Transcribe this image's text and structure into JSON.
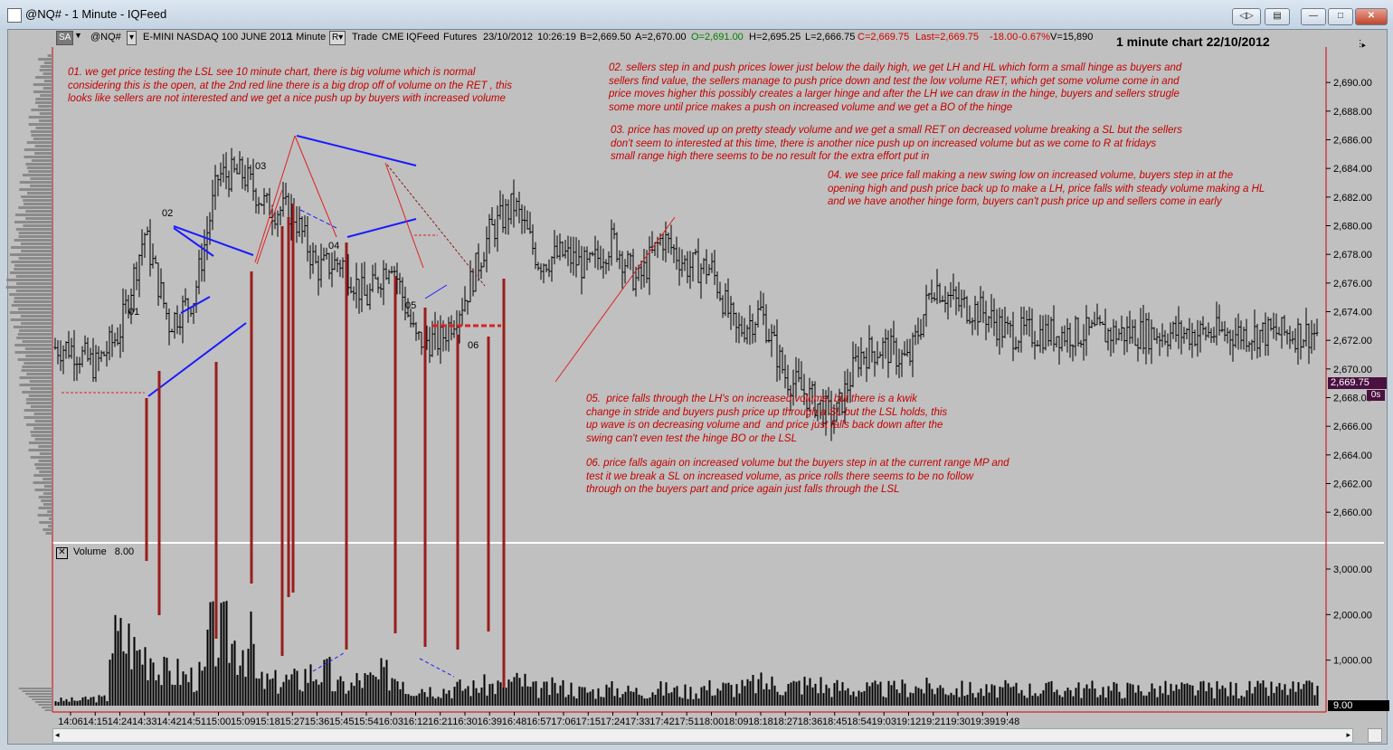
{
  "window": {
    "title": "@NQ# - 1 Minute - IQFeed"
  },
  "toolbar": {
    "mode": "SA",
    "symbol": "@NQ#",
    "contract": "E-MINI NASDAQ 100 JUNE 2012",
    "interval": "1 Minute",
    "r_label": "R",
    "trade": "Trade",
    "exchange": "CME",
    "feed": "IQFeed",
    "type": "Futures",
    "date": "23/10/2012",
    "time": "10:26:19",
    "bid": "B=2,669.50",
    "ask": "A=2,670.00",
    "open": "O=2,691.00",
    "high": "H=2,695.25",
    "low": "L=2,666.75",
    "close": "C=2,669.75",
    "last": "Last=2,669.75",
    "change": "-18.00",
    "change_pct": "-0.67%",
    "volume": "V=15,890"
  },
  "chart_title": "1 minute chart 22/10/2012",
  "notes": {
    "n01": "01. we get price testing the LSL see 10 minute chart, there is big volume which is normal\nconsidering this is the open, at the 2nd red line there is a big drop off of volume on the RET , this\nlooks like sellers are not interested and we get a nice push up by buyers with increased volume",
    "n02": "02. sellers step in and push prices lower just below the daily high, we get LH and HL which form a small hinge as buyers and\nsellers find value, the sellers manage to push price down and test the low volume RET, which get some volume come in and\nprice moves higher this possibly creates a larger hinge and after the LH we can draw in the hinge, buyers and sellers strugle\nsome more until price makes a push on increased volume and we get a BO of the hinge",
    "n03": "03. price has moved up on pretty steady volume and we get a small RET on decreased volume breaking a SL but the sellers\ndon't seem to interested at this time, there is another nice push up on increased volume but as we come to R at fridays\nsmall range high there seems to be no result for the extra effort put in",
    "n04": "04. we see price fall making a new swing low on increased volume, buyers step in at the\nopening high and push price back up to make a LH, price falls with steady volume making a HL\nand we have another hinge form, buyers can't push price up and sellers come in early",
    "n05": "05.  price falls through the LH's on increased volume, but there is a kwik\nchange in stride and buyers push price up through a SL but the LSL holds, this\nup wave is on decreasing volume and  and price just falls back down after the\nswing can't even test the hinge BO or the LSL",
    "n06": "06. price falls again on increased volume but the buyers step in at the current range MP and\ntest it we break a SL on increased volume, as price rolls there seems to be no follow\nthrough on the buyers part and price again just falls through the LSL"
  },
  "point_labels": [
    "01",
    "02",
    "03",
    "04",
    "05",
    "06"
  ],
  "price_badge": "2,669.75",
  "seconds_badge": "0s",
  "volume_header": {
    "label": "Volume",
    "value": "8.00"
  },
  "volume_badge": "9.00",
  "colors": {
    "note": "#c40000",
    "bars": "#000000",
    "volume": "#000000",
    "trendline": "#1a1aff",
    "marker": "#8b1a1a",
    "badge": "#4a1040"
  },
  "chart_data": [
    {
      "type": "ohlc",
      "title": "1 minute chart 22/10/2012",
      "x": [
        "14:06",
        "14:15",
        "14:24",
        "14:33",
        "14:42",
        "14:51",
        "15:00",
        "15:09",
        "15:18",
        "15:27",
        "15:36",
        "15:45",
        "15:54",
        "16:03",
        "16:12",
        "16:21",
        "16:30",
        "16:39",
        "16:48",
        "16:57",
        "17:06",
        "17:15",
        "17:24",
        "17:33",
        "17:42",
        "17:51",
        "18:00",
        "18:09",
        "18:18",
        "18:27",
        "18:36",
        "18:45",
        "18:54",
        "19:03",
        "19:12",
        "19:21",
        "19:30",
        "19:39",
        "19:48"
      ],
      "close": [
        2671.5,
        2670.2,
        2672.6,
        2679.5,
        2673.2,
        2675.0,
        2683.5,
        2683.6,
        2681.2,
        2681.0,
        2677.0,
        2677.5,
        2674.8,
        2677.8,
        2672.0,
        2672.0,
        2675.0,
        2679.5,
        2681.5,
        2677.5,
        2678.0,
        2677.0,
        2679.0,
        2676.0,
        2679.2,
        2677.2,
        2677.0,
        2672.5,
        2674.0,
        2669.5,
        2668.0,
        2666.5,
        2671.0,
        2671.5,
        2670.5,
        2676.0,
        2674.5,
        2674.0,
        2672.5
      ],
      "ylim": [
        2659.0,
        2692.5
      ],
      "y_ticks": [
        "2,660.00",
        "2,662.00",
        "2,664.00",
        "2,666.00",
        "2,668.00",
        "2,670.00",
        "2,672.00",
        "2,674.00",
        "2,676.00",
        "2,678.00",
        "2,680.00",
        "2,682.00",
        "2,684.00",
        "2,686.00",
        "2,688.00",
        "2,690.00"
      ],
      "grid": false
    },
    {
      "type": "bar",
      "title": "Volume",
      "x": [
        "14:06",
        "14:15",
        "14:24",
        "14:33",
        "14:42",
        "14:51",
        "15:00",
        "15:09",
        "15:18",
        "15:27",
        "15:36",
        "15:45",
        "15:54",
        "16:03",
        "16:12",
        "16:21",
        "16:30",
        "16:39",
        "16:48",
        "16:57",
        "17:06",
        "17:15",
        "17:24",
        "17:33",
        "17:42",
        "17:51",
        "18:00",
        "18:09",
        "18:18",
        "18:27",
        "18:36",
        "18:45",
        "18:54",
        "19:03",
        "19:12",
        "19:21",
        "19:30",
        "19:39",
        "19:48"
      ],
      "values": [
        150,
        200,
        1800,
        1500,
        900,
        800,
        1900,
        1700,
        650,
        700,
        900,
        550,
        700,
        850,
        500,
        450,
        500,
        550,
        650,
        450,
        500,
        400,
        450,
        400,
        450,
        400,
        500,
        500,
        600,
        550,
        600,
        500,
        450,
        450,
        500,
        500,
        450,
        400,
        450
      ],
      "ylim": [
        0,
        3400
      ],
      "y_ticks": [
        "1,000.00",
        "2,000.00",
        "3,000.00"
      ]
    }
  ]
}
